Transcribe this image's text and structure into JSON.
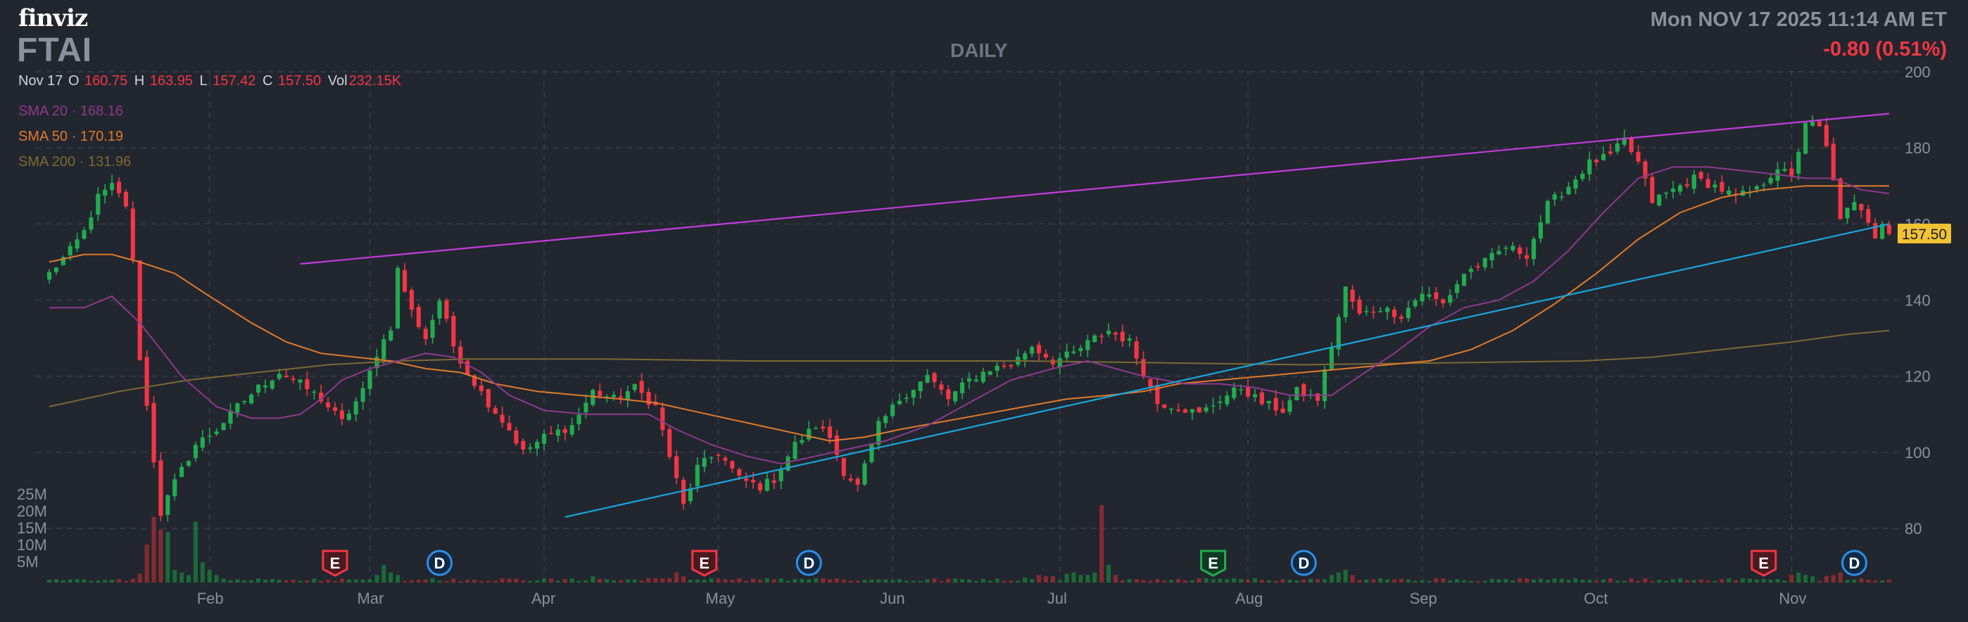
{
  "header": {
    "logo": "finviz",
    "ticker": "FTAI",
    "timeframe": "DAILY",
    "datetime": "Mon NOV 17 2025 11:14 AM ET",
    "change": "-0.80 (0.51%)"
  },
  "ohlc": {
    "date": "Nov 17",
    "o_label": "O",
    "o": "160.75",
    "h_label": "H",
    "h": "163.95",
    "l_label": "L",
    "l": "157.42",
    "c_label": "C",
    "c": "157.50",
    "vol_label": "Vol",
    "vol": "232.15K"
  },
  "sma_legend": [
    {
      "label": "SMA 20",
      "sep": "·",
      "value": "168.16",
      "color": "#8d3a8a"
    },
    {
      "label": "SMA 50",
      "sep": "·",
      "value": "170.19",
      "color": "#e07b2c"
    },
    {
      "label": "SMA 200",
      "sep": "·",
      "value": "131.96",
      "color": "#7c6a34"
    }
  ],
  "colors": {
    "background": "#22262f",
    "up": "#22ab50",
    "down": "#f23645",
    "trendline_upper": "#c13cdc",
    "trendline_lower": "#1aa5dc",
    "price_tag": "#f1c232"
  },
  "chart_data": {
    "type": "candlestick",
    "title": "FTAI",
    "timeframe": "DAILY",
    "x_range": [
      "2025-01-13",
      "2025-11-17"
    ],
    "ylim": [
      72,
      200
    ],
    "y_ticks": [
      80,
      100,
      120,
      140,
      160,
      180,
      200
    ],
    "x_tick_labels": [
      "Feb",
      "Mar",
      "Apr",
      "May",
      "Jun",
      "Jul",
      "Aug",
      "Sep",
      "Oct",
      "Nov"
    ],
    "volume_ticks": [
      "25M",
      "20M",
      "15M",
      "10M",
      "5M"
    ],
    "last_price": "157.50",
    "anchors": [
      [
        0,
        147
      ],
      [
        3,
        153
      ],
      [
        5,
        158
      ],
      [
        7,
        167
      ],
      [
        9,
        170
      ],
      [
        11,
        165
      ],
      [
        12,
        150
      ],
      [
        13,
        125
      ],
      [
        14,
        112
      ],
      [
        16,
        84
      ],
      [
        18,
        92
      ],
      [
        21,
        102
      ],
      [
        24,
        106
      ],
      [
        27,
        112
      ],
      [
        30,
        117
      ],
      [
        33,
        121
      ],
      [
        36,
        118
      ],
      [
        39,
        114
      ],
      [
        42,
        108
      ],
      [
        45,
        116
      ],
      [
        47,
        126
      ],
      [
        49,
        133
      ],
      [
        50,
        148
      ],
      [
        52,
        137
      ],
      [
        54,
        130
      ],
      [
        56,
        140
      ],
      [
        58,
        128
      ],
      [
        60,
        121
      ],
      [
        63,
        113
      ],
      [
        66,
        106
      ],
      [
        68,
        100
      ],
      [
        71,
        104
      ],
      [
        75,
        107
      ],
      [
        78,
        116
      ],
      [
        81,
        114
      ],
      [
        84,
        117
      ],
      [
        87,
        112
      ],
      [
        89,
        99
      ],
      [
        91,
        86
      ],
      [
        93,
        96
      ],
      [
        96,
        100
      ],
      [
        99,
        93
      ],
      [
        102,
        91
      ],
      [
        104,
        93
      ],
      [
        107,
        102
      ],
      [
        110,
        107
      ],
      [
        112,
        104
      ],
      [
        114,
        95
      ],
      [
        116,
        91
      ],
      [
        119,
        107
      ],
      [
        122,
        114
      ],
      [
        126,
        120
      ],
      [
        129,
        114
      ],
      [
        132,
        119
      ],
      [
        135,
        122
      ],
      [
        138,
        123
      ],
      [
        141,
        128
      ],
      [
        144,
        124
      ],
      [
        147,
        126
      ],
      [
        150,
        130
      ],
      [
        152,
        132
      ],
      [
        155,
        129
      ],
      [
        157,
        121
      ],
      [
        159,
        113
      ],
      [
        162,
        112
      ],
      [
        165,
        110
      ],
      [
        168,
        114
      ],
      [
        171,
        117
      ],
      [
        174,
        113
      ],
      [
        177,
        111
      ],
      [
        179,
        116
      ],
      [
        182,
        114
      ],
      [
        184,
        128
      ],
      [
        186,
        143
      ],
      [
        188,
        136
      ],
      [
        191,
        138
      ],
      [
        194,
        136
      ],
      [
        197,
        142
      ],
      [
        200,
        139
      ],
      [
        203,
        147
      ],
      [
        206,
        150
      ],
      [
        209,
        154
      ],
      [
        212,
        152
      ],
      [
        215,
        165
      ],
      [
        218,
        170
      ],
      [
        221,
        176
      ],
      [
        224,
        178
      ],
      [
        226,
        182
      ],
      [
        228,
        176
      ],
      [
        230,
        166
      ],
      [
        233,
        169
      ],
      [
        236,
        172
      ],
      [
        239,
        170
      ],
      [
        242,
        167
      ],
      [
        245,
        169
      ],
      [
        248,
        175
      ],
      [
        250,
        172
      ],
      [
        252,
        187
      ],
      [
        254,
        185
      ],
      [
        255,
        180
      ],
      [
        257,
        162
      ],
      [
        259,
        165
      ],
      [
        261,
        161
      ],
      [
        262,
        157
      ],
      [
        263,
        161
      ],
      [
        264,
        158
      ]
    ],
    "volume": [
      [
        0,
        1.2
      ],
      [
        12,
        1.5
      ],
      [
        13,
        3.6
      ],
      [
        14,
        15
      ],
      [
        15,
        26
      ],
      [
        16,
        21
      ],
      [
        17,
        20
      ],
      [
        18,
        5
      ],
      [
        19,
        4
      ],
      [
        20,
        3
      ],
      [
        21,
        24
      ],
      [
        22,
        8
      ],
      [
        23,
        5
      ],
      [
        24,
        3
      ],
      [
        47,
        3
      ],
      [
        48,
        7
      ],
      [
        49,
        4
      ],
      [
        50,
        3
      ],
      [
        78,
        2.5
      ],
      [
        90,
        4
      ],
      [
        91,
        2.5
      ],
      [
        140,
        2
      ],
      [
        142,
        3
      ],
      [
        143,
        2.5
      ],
      [
        144,
        2.5
      ],
      [
        146,
        3.5
      ],
      [
        147,
        4
      ],
      [
        148,
        3
      ],
      [
        149,
        3
      ],
      [
        150,
        4
      ],
      [
        151,
        35
      ],
      [
        152,
        7
      ],
      [
        153,
        3
      ],
      [
        184,
        3
      ],
      [
        185,
        4
      ],
      [
        186,
        5
      ],
      [
        187,
        3
      ],
      [
        250,
        3
      ],
      [
        251,
        4
      ],
      [
        252,
        3
      ],
      [
        253,
        2.5
      ],
      [
        255,
        2.5
      ],
      [
        256,
        3
      ],
      [
        257,
        4
      ]
    ],
    "sma20": [
      [
        0,
        138
      ],
      [
        5,
        138
      ],
      [
        9,
        141
      ],
      [
        13,
        134
      ],
      [
        19,
        120
      ],
      [
        24,
        112
      ],
      [
        29,
        109
      ],
      [
        33,
        109
      ],
      [
        36,
        110
      ],
      [
        39,
        114
      ],
      [
        42,
        119
      ],
      [
        46,
        122
      ],
      [
        50,
        124
      ],
      [
        54,
        126
      ],
      [
        58,
        125
      ],
      [
        62,
        121
      ],
      [
        66,
        115
      ],
      [
        71,
        111
      ],
      [
        77,
        110
      ],
      [
        82,
        110
      ],
      [
        86,
        110
      ],
      [
        90,
        106
      ],
      [
        95,
        102
      ],
      [
        100,
        99
      ],
      [
        105,
        97
      ],
      [
        110,
        99
      ],
      [
        115,
        101
      ],
      [
        120,
        103
      ],
      [
        126,
        107
      ],
      [
        132,
        113
      ],
      [
        138,
        119
      ],
      [
        144,
        122
      ],
      [
        149,
        124
      ],
      [
        153,
        122
      ],
      [
        157,
        120
      ],
      [
        163,
        118
      ],
      [
        168,
        118
      ],
      [
        173,
        117
      ],
      [
        178,
        115
      ],
      [
        184,
        115
      ],
      [
        188,
        120
      ],
      [
        193,
        126
      ],
      [
        198,
        133
      ],
      [
        203,
        138
      ],
      [
        208,
        140
      ],
      [
        213,
        145
      ],
      [
        218,
        153
      ],
      [
        223,
        163
      ],
      [
        228,
        172
      ],
      [
        233,
        175
      ],
      [
        238,
        175
      ],
      [
        243,
        174
      ],
      [
        248,
        173
      ],
      [
        252,
        172
      ],
      [
        256,
        172
      ],
      [
        260,
        169
      ],
      [
        264,
        168
      ]
    ],
    "sma50": [
      [
        0,
        150
      ],
      [
        5,
        152
      ],
      [
        9,
        152
      ],
      [
        13,
        150
      ],
      [
        18,
        147
      ],
      [
        23,
        141
      ],
      [
        29,
        134
      ],
      [
        34,
        129
      ],
      [
        39,
        126
      ],
      [
        44,
        125
      ],
      [
        49,
        124
      ],
      [
        54,
        122
      ],
      [
        59,
        121
      ],
      [
        64,
        118
      ],
      [
        70,
        116
      ],
      [
        76,
        115
      ],
      [
        82,
        114
      ],
      [
        87,
        113
      ],
      [
        92,
        111
      ],
      [
        97,
        109
      ],
      [
        102,
        107
      ],
      [
        107,
        105
      ],
      [
        112,
        103
      ],
      [
        117,
        104
      ],
      [
        122,
        106
      ],
      [
        128,
        108
      ],
      [
        134,
        110
      ],
      [
        140,
        112
      ],
      [
        146,
        114
      ],
      [
        152,
        115
      ],
      [
        157,
        116
      ],
      [
        162,
        118
      ],
      [
        168,
        119
      ],
      [
        174,
        120
      ],
      [
        180,
        121
      ],
      [
        186,
        122
      ],
      [
        192,
        123
      ],
      [
        198,
        124
      ],
      [
        204,
        127
      ],
      [
        210,
        132
      ],
      [
        216,
        139
      ],
      [
        222,
        147
      ],
      [
        228,
        156
      ],
      [
        234,
        163
      ],
      [
        240,
        167
      ],
      [
        246,
        169
      ],
      [
        252,
        170
      ],
      [
        258,
        170
      ],
      [
        264,
        170
      ]
    ],
    "sma200": [
      [
        0,
        112
      ],
      [
        10,
        116
      ],
      [
        20,
        119
      ],
      [
        30,
        121
      ],
      [
        40,
        123
      ],
      [
        50,
        124
      ],
      [
        60,
        124.5
      ],
      [
        80,
        124.5
      ],
      [
        100,
        124
      ],
      [
        120,
        124
      ],
      [
        140,
        124
      ],
      [
        160,
        123.5
      ],
      [
        180,
        123
      ],
      [
        200,
        123.5
      ],
      [
        220,
        124
      ],
      [
        230,
        125
      ],
      [
        240,
        127
      ],
      [
        250,
        129
      ],
      [
        258,
        131
      ],
      [
        264,
        132
      ]
    ],
    "trendlines": [
      {
        "name": "resistance",
        "start": [
          36,
          149.5
        ],
        "end": [
          264,
          189
        ]
      },
      {
        "name": "support",
        "start": [
          74,
          83
        ],
        "end": [
          264,
          160
        ]
      }
    ],
    "event_markers": [
      {
        "letter": "E",
        "kind": "earnings",
        "type": "negative",
        "index": 41
      },
      {
        "letter": "D",
        "kind": "dividend",
        "index": 56
      },
      {
        "letter": "E",
        "kind": "earnings",
        "type": "negative",
        "index": 94
      },
      {
        "letter": "D",
        "kind": "dividend",
        "index": 109
      },
      {
        "letter": "E",
        "kind": "earnings",
        "type": "positive",
        "index": 167
      },
      {
        "letter": "D",
        "kind": "dividend",
        "index": 180
      },
      {
        "letter": "E",
        "kind": "earnings",
        "type": "negative",
        "index": 246
      },
      {
        "letter": "D",
        "kind": "dividend",
        "index": 259
      }
    ],
    "month_positions": [
      {
        "label": "Feb",
        "index": 23
      },
      {
        "label": "Mar",
        "index": 46
      },
      {
        "label": "Apr",
        "index": 71
      },
      {
        "label": "May",
        "index": 96
      },
      {
        "label": "Jun",
        "index": 121
      },
      {
        "label": "Jul",
        "index": 145
      },
      {
        "label": "Aug",
        "index": 172
      },
      {
        "label": "Sep",
        "index": 197
      },
      {
        "label": "Oct",
        "index": 222
      },
      {
        "label": "Nov",
        "index": 250
      }
    ],
    "n_bars": 265
  }
}
